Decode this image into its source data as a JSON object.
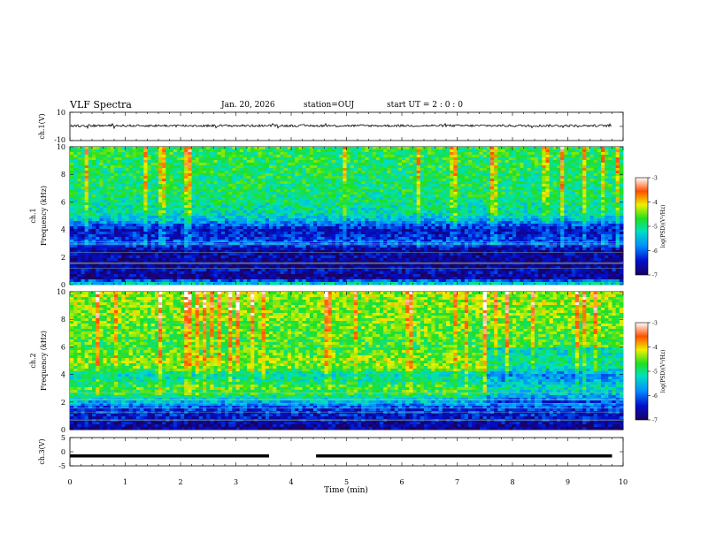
{
  "header": {
    "title": "VLF Spectra",
    "date": "Jan. 20, 2026",
    "station": "station=OUJ",
    "start": "start  UT =   2 : 0  : 0"
  },
  "chart_data": [
    {
      "type": "line",
      "panel": "ch1-waveform",
      "ylabel": "ch.1(V)",
      "ylim": [
        -10,
        10
      ],
      "yticks": [
        "10",
        "-10"
      ],
      "description_level_V": 0.5,
      "x": [
        0,
        1,
        2,
        3,
        4,
        5,
        6,
        7,
        8,
        9,
        9.8
      ],
      "values": [
        0.5,
        0.4,
        0.6,
        0.3,
        0.5,
        0.4,
        0.5,
        0.6,
        0.4,
        0.5,
        0.6
      ]
    },
    {
      "type": "heatmap",
      "panel": "ch1-spectrogram",
      "ylabel": "ch.1\nFrequency (kHz)",
      "ylim": [
        0,
        10
      ],
      "yticks": [
        "0",
        "2",
        "4",
        "6",
        "8",
        "10"
      ],
      "colorbar_label": "log(PSD)(V²/Hz)",
      "colorbar_ticks": [
        "-3",
        "-4",
        "-5",
        "-6",
        "-7"
      ],
      "colorbar_range": [
        -7,
        -3
      ],
      "profile_freq_kHz": [
        0,
        0.5,
        1,
        1.5,
        2,
        2.5,
        3,
        3.5,
        4,
        4.5,
        5,
        6,
        7,
        8,
        9,
        10
      ],
      "profile_logpsd": [
        -5.0,
        -6.8,
        -6.5,
        -6.9,
        -6.6,
        -6.7,
        -6.0,
        -6.3,
        -6.5,
        -5.8,
        -5.2,
        -5.0,
        -4.9,
        -4.9,
        -4.8,
        -4.8
      ]
    },
    {
      "type": "heatmap",
      "panel": "ch2-spectrogram",
      "ylabel": "ch.2\nFrequency (kHz)",
      "ylim": [
        0,
        10
      ],
      "yticks": [
        "0",
        "2",
        "4",
        "6",
        "8",
        "10"
      ],
      "colorbar_label": "log(PSD)(V²/Hz)",
      "colorbar_ticks": [
        "-3",
        "-4",
        "-5",
        "-6",
        "-7"
      ],
      "colorbar_range": [
        -7,
        -3
      ],
      "profile_freq_kHz": [
        0,
        0.5,
        1,
        1.5,
        2,
        2.5,
        3,
        3.5,
        4,
        4.5,
        5,
        6,
        7,
        8,
        9,
        10
      ],
      "profile_logpsd": [
        -6.8,
        -6.6,
        -6.4,
        -6.2,
        -5.6,
        -4.9,
        -4.6,
        -5.0,
        -5.2,
        -4.5,
        -4.4,
        -4.7,
        -4.6,
        -4.5,
        -4.4,
        -4.4
      ]
    },
    {
      "type": "line",
      "panel": "ch3-signal",
      "ylabel": "ch.3(V)",
      "ylim": [
        -5,
        5
      ],
      "yticks": [
        "5",
        "0",
        "-5"
      ],
      "xlabel": "Time (min)",
      "xlim": [
        0,
        10
      ],
      "xticks": [
        "0",
        "1",
        "2",
        "3",
        "4",
        "5",
        "6",
        "7",
        "8",
        "9",
        "10"
      ],
      "level_V": -1.5,
      "gap_minutes": [
        3.6,
        4.45
      ],
      "data_end_min": 9.8
    }
  ]
}
